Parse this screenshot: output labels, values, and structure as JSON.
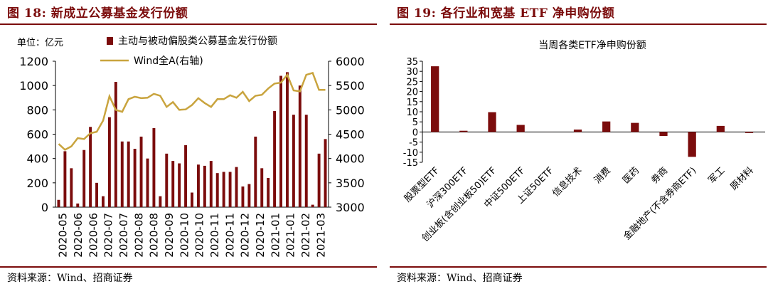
{
  "left": {
    "figure_title": "图 18:  新成立公募基金发行份额",
    "source": "资料来源：Wind、招商证券",
    "unit_label": "单位：亿元",
    "chart_data": {
      "type": "bar",
      "legend": {
        "bar": "主动与被动偏股类公募基金发行份额",
        "line": "Wind全A(右轴)",
        "position": "top"
      },
      "x_tick_labels": [
        "2020-05",
        "2020-06",
        "2020-06",
        "2020-07",
        "2020-07",
        "2020-08",
        "2020-08",
        "2020-09",
        "2020-10",
        "2020-10",
        "2020-11",
        "2020-11",
        "2020-12",
        "2020-12",
        "2021-01",
        "2021-01",
        "2021-02",
        "2021-03"
      ],
      "y_left": {
        "min": 0,
        "max": 1200,
        "ticks": [
          "0",
          "200",
          "400",
          "600",
          "800",
          "1000",
          "1200"
        ]
      },
      "y_right": {
        "min": 3000,
        "max": 6000,
        "ticks": [
          "3000",
          "3500",
          "4000",
          "4500",
          "5000",
          "5500",
          "6000"
        ]
      },
      "bars": [
        60,
        460,
        320,
        30,
        470,
        660,
        200,
        90,
        740,
        1030,
        540,
        540,
        480,
        580,
        400,
        650,
        90,
        440,
        380,
        360,
        510,
        120,
        350,
        340,
        380,
        280,
        290,
        290,
        330,
        170,
        190,
        580,
        320,
        240,
        790,
        1080,
        1110,
        760,
        1000,
        760,
        20,
        440,
        560
      ],
      "line": [
        4300,
        4180,
        4250,
        4420,
        4400,
        4520,
        4550,
        4780,
        5280,
        5000,
        4960,
        5220,
        5270,
        5240,
        5250,
        5330,
        5290,
        5060,
        5160,
        5000,
        5010,
        5100,
        5240,
        5140,
        5060,
        5220,
        5220,
        5300,
        5250,
        5370,
        5180,
        5290,
        5310,
        5440,
        5540,
        5560,
        5720,
        5400,
        5380,
        5720,
        5760,
        5410,
        5410
      ]
    }
  },
  "right": {
    "figure_title": "图 19:  各行业和宽基 ETF 净申购份额",
    "source": "资料来源：Wind、招商证券",
    "chart_data": {
      "type": "bar",
      "title": "当周各类ETF净申购份额",
      "categories": [
        "股票型ETF",
        "沪深300ETF",
        "创业板(含创业板50)ETF",
        "中证500ETF",
        "上证50ETF",
        "信息技术",
        "消费",
        "医药",
        "券商",
        "金融地产(不含券商ETF)",
        "军工",
        "原材料"
      ],
      "values": [
        32.5,
        0.6,
        9.8,
        3.5,
        0,
        1.2,
        5.2,
        4.5,
        -2.0,
        -12.3,
        3.0,
        -0.5
      ],
      "ylim": [
        -15,
        35
      ],
      "y_ticks": [
        "-15",
        "-10",
        "-5",
        "0",
        "5",
        "10",
        "15",
        "20",
        "25",
        "30",
        "35"
      ]
    }
  },
  "colors": {
    "bar": "#7b0c0c",
    "line": "#c9a43e",
    "accent": "#7b0c0c"
  }
}
